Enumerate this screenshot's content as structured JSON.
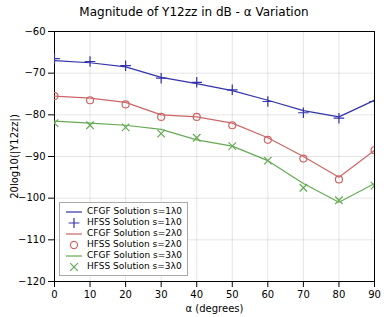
{
  "chart_data": {
    "type": "line",
    "title": "Magnitude of Y12zz in dB - α Variation",
    "xlabel": "α (degrees)",
    "ylabel": "20log10(|Y12zz|)",
    "x": [
      0,
      10,
      20,
      30,
      40,
      50,
      60,
      70,
      80,
      90
    ],
    "xlim": [
      0,
      90
    ],
    "ylim": [
      -120,
      -60
    ],
    "xticks": [
      0,
      10,
      20,
      30,
      40,
      50,
      60,
      70,
      80,
      90
    ],
    "yticks": [
      -120,
      -110,
      -100,
      -90,
      -80,
      -70,
      -60
    ],
    "grid": true,
    "legend": "lower left",
    "series": [
      {
        "name": "CFGF Solution s=1λ0",
        "color": "#3333aa",
        "type": "line",
        "line_style": "solid",
        "values": [
          -67.0,
          -67.5,
          -68.5,
          -71.0,
          -72.5,
          -74.2,
          -76.5,
          -79.0,
          -80.5,
          -76.5
        ]
      },
      {
        "name": "HFSS Solution s=1λ0",
        "color": "#3333aa",
        "type": "scatter",
        "marker": "plus",
        "values": [
          -66.5,
          -67.2,
          -68.2,
          -71.2,
          -72.2,
          -74.0,
          -76.8,
          -79.5,
          -80.8,
          -76.8
        ]
      },
      {
        "name": "CFGF Solution s=2λ0",
        "color": "#cc6666",
        "type": "line",
        "line_style": "solid",
        "values": [
          -75.5,
          -76.0,
          -77.0,
          -80.0,
          -80.5,
          -82.0,
          -85.5,
          -90.0,
          -95.0,
          -88.5
        ]
      },
      {
        "name": "HFSS Solution s=2λ0",
        "color": "#cc6666",
        "type": "scatter",
        "marker": "circle",
        "values": [
          -75.5,
          -76.5,
          -77.5,
          -80.5,
          -80.5,
          -82.5,
          -86.0,
          -90.5,
          -95.5,
          -88.5
        ]
      },
      {
        "name": "CFGF Solution s=3λ0",
        "color": "#66aa55",
        "type": "line",
        "line_style": "solid",
        "values": [
          -81.5,
          -82.0,
          -82.5,
          -83.5,
          -86.0,
          -87.5,
          -91.0,
          -96.5,
          -101.0,
          -96.5
        ]
      },
      {
        "name": "HFSS Solution s=3λ0",
        "color": "#66aa55",
        "type": "scatter",
        "marker": "x",
        "values": [
          -82.0,
          -82.5,
          -83.0,
          -84.5,
          -85.5,
          -87.5,
          -91.0,
          -97.5,
          -100.5,
          -97.0
        ]
      }
    ]
  }
}
